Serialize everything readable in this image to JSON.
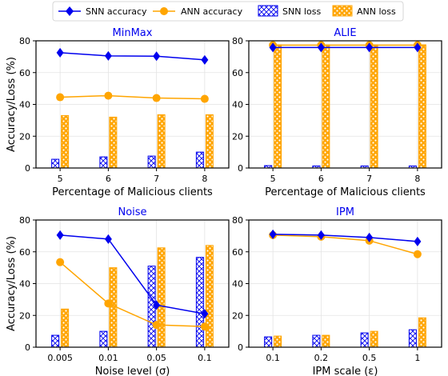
{
  "legend": {
    "placement": "top-center",
    "entries": [
      {
        "label": "SNN accuracy",
        "kind": "line",
        "marker": "diamond",
        "color": "#0000ee"
      },
      {
        "label": "ANN accuracy",
        "kind": "line",
        "marker": "circle",
        "color": "#ffa500"
      },
      {
        "label": "SNN loss",
        "kind": "bar",
        "pattern": "crosshatch",
        "color": "#0000ee"
      },
      {
        "label": "ANN loss",
        "kind": "bar",
        "pattern": "dots",
        "color": "#ffa500"
      }
    ]
  },
  "colors": {
    "snn": "#0000ee",
    "ann": "#ffa500",
    "title": "#0000ee"
  },
  "chart_data": [
    {
      "type": "bar",
      "title": "MinMax",
      "xlabel": "Percentage of Malicious clients",
      "ylabel": "Accuracy/Loss (%)",
      "ylim": [
        0,
        80
      ],
      "yticks": [
        0,
        20,
        40,
        60,
        80
      ],
      "categories": [
        "5",
        "6",
        "7",
        "8"
      ],
      "grid": true,
      "series": [
        {
          "name": "SNN accuracy",
          "kind": "line",
          "values": [
            72.5,
            70.5,
            70.3,
            68.0
          ]
        },
        {
          "name": "ANN accuracy",
          "kind": "line",
          "values": [
            44.5,
            45.5,
            44.0,
            43.5
          ]
        },
        {
          "name": "SNN loss",
          "kind": "bar",
          "values": [
            5.5,
            7.0,
            7.5,
            10.0
          ]
        },
        {
          "name": "ANN loss",
          "kind": "bar",
          "values": [
            33.0,
            32.0,
            33.5,
            33.5
          ]
        }
      ]
    },
    {
      "type": "bar",
      "title": "ALIE",
      "xlabel": "Percentage of Malicious clients",
      "ylabel": "",
      "ylim": [
        0,
        80
      ],
      "yticks": [
        0,
        20,
        40,
        60,
        80
      ],
      "categories": [
        "5",
        "6",
        "7",
        "8"
      ],
      "grid": true,
      "series": [
        {
          "name": "SNN accuracy",
          "kind": "line",
          "values": [
            75.8,
            75.8,
            75.8,
            75.8
          ]
        },
        {
          "name": "ANN accuracy",
          "kind": "line",
          "values": [
            77.3,
            77.3,
            77.3,
            77.3
          ]
        },
        {
          "name": "SNN loss",
          "kind": "bar",
          "values": [
            1.5,
            1.3,
            1.3,
            1.3
          ]
        },
        {
          "name": "ANN loss",
          "kind": "bar",
          "values": [
            77.5,
            77.5,
            77.5,
            77.5
          ]
        }
      ]
    },
    {
      "type": "bar",
      "title": "Noise",
      "xlabel": "Noise level (σ)",
      "ylabel": "Accuracy/Loss (%)",
      "ylim": [
        0,
        80
      ],
      "yticks": [
        0,
        20,
        40,
        60,
        80
      ],
      "categories": [
        "0.005",
        "0.01",
        "0.05",
        "0.1"
      ],
      "grid": true,
      "series": [
        {
          "name": "SNN accuracy",
          "kind": "line",
          "values": [
            70.5,
            68.0,
            26.5,
            21.0
          ]
        },
        {
          "name": "ANN accuracy",
          "kind": "line",
          "values": [
            53.5,
            27.5,
            14.0,
            13.0
          ]
        },
        {
          "name": "SNN loss",
          "kind": "bar",
          "values": [
            7.5,
            10.0,
            51.0,
            56.5
          ]
        },
        {
          "name": "ANN loss",
          "kind": "bar",
          "values": [
            24.0,
            50.0,
            62.5,
            64.0
          ]
        }
      ]
    },
    {
      "type": "bar",
      "title": "IPM",
      "xlabel": "IPM scale (ε)",
      "ylabel": "",
      "ylim": [
        0,
        80
      ],
      "yticks": [
        0,
        20,
        40,
        60,
        80
      ],
      "categories": [
        "0.1",
        "0.2",
        "0.5",
        "1"
      ],
      "grid": true,
      "series": [
        {
          "name": "SNN accuracy",
          "kind": "line",
          "values": [
            71.0,
            70.5,
            69.0,
            66.5
          ]
        },
        {
          "name": "ANN accuracy",
          "kind": "line",
          "values": [
            70.5,
            69.5,
            67.0,
            58.5
          ]
        },
        {
          "name": "SNN loss",
          "kind": "bar",
          "values": [
            6.5,
            7.5,
            9.0,
            11.0
          ]
        },
        {
          "name": "ANN loss",
          "kind": "bar",
          "values": [
            7.0,
            7.5,
            10.0,
            18.5
          ]
        }
      ]
    }
  ]
}
